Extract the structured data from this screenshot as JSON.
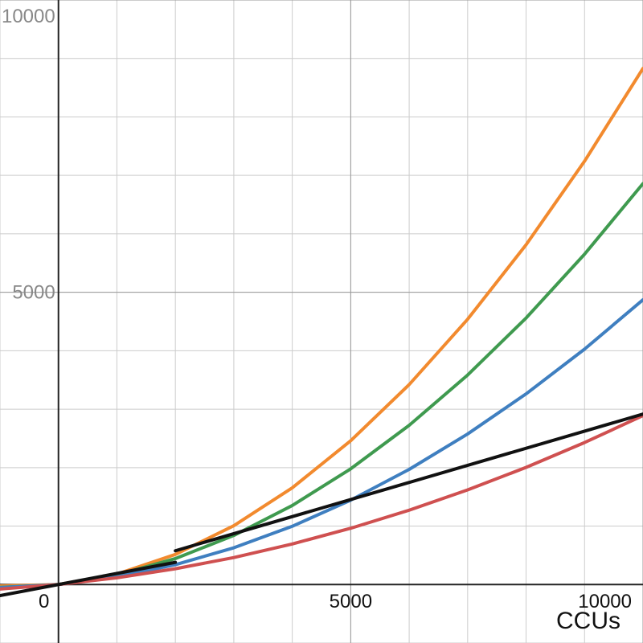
{
  "chart_data": {
    "type": "line",
    "x_label": "CCUs",
    "xlim": [
      -1000,
      10000
    ],
    "ylim": [
      -1000,
      10000
    ],
    "xticks": [
      0,
      5000,
      10000
    ],
    "yticks": [
      5000,
      10000
    ],
    "grid": true,
    "grid_step": 1000,
    "series": [
      {
        "color": "#f28a2e",
        "x": [
          -1000,
          0,
          1000,
          2000,
          3000,
          4000,
          5000,
          6000,
          7000,
          8000,
          9000,
          10000
        ],
        "values": [
          -23,
          0,
          179,
          515,
          1007,
          1655,
          2460,
          3421,
          4539,
          5813,
          7243,
          8830
        ]
      },
      {
        "color": "#3f9a4f",
        "x": [
          -1000,
          0,
          1000,
          2000,
          3000,
          4000,
          5000,
          6000,
          7000,
          8000,
          9000,
          10000
        ],
        "values": [
          -48,
          0,
          164,
          444,
          840,
          1352,
          1980,
          2724,
          3584,
          4560,
          5652,
          6860
        ]
      },
      {
        "color": "#3f7fc0",
        "x": [
          -1000,
          0,
          1000,
          2000,
          3000,
          4000,
          5000,
          6000,
          7000,
          8000,
          9000,
          10000
        ],
        "values": [
          -51,
          0,
          131,
          340,
          629,
          997,
          1444,
          1970,
          2576,
          3262,
          4027,
          4872
        ]
      },
      {
        "color": "#cf5050",
        "x": [
          -1000,
          0,
          1000,
          2000,
          3000,
          4000,
          5000,
          6000,
          7000,
          8000,
          9000,
          10000
        ],
        "values": [
          -77,
          0,
          116,
          270,
          462,
          694,
          963,
          1272,
          1619,
          2004,
          2429,
          2890
        ]
      },
      {
        "color": "#111111",
        "x": [
          -1000,
          0,
          2000
        ],
        "values": [
          -190,
          0,
          380
        ]
      },
      {
        "color": "#111111",
        "x": [
          2000,
          10000
        ],
        "values": [
          578,
          2916
        ]
      }
    ]
  }
}
